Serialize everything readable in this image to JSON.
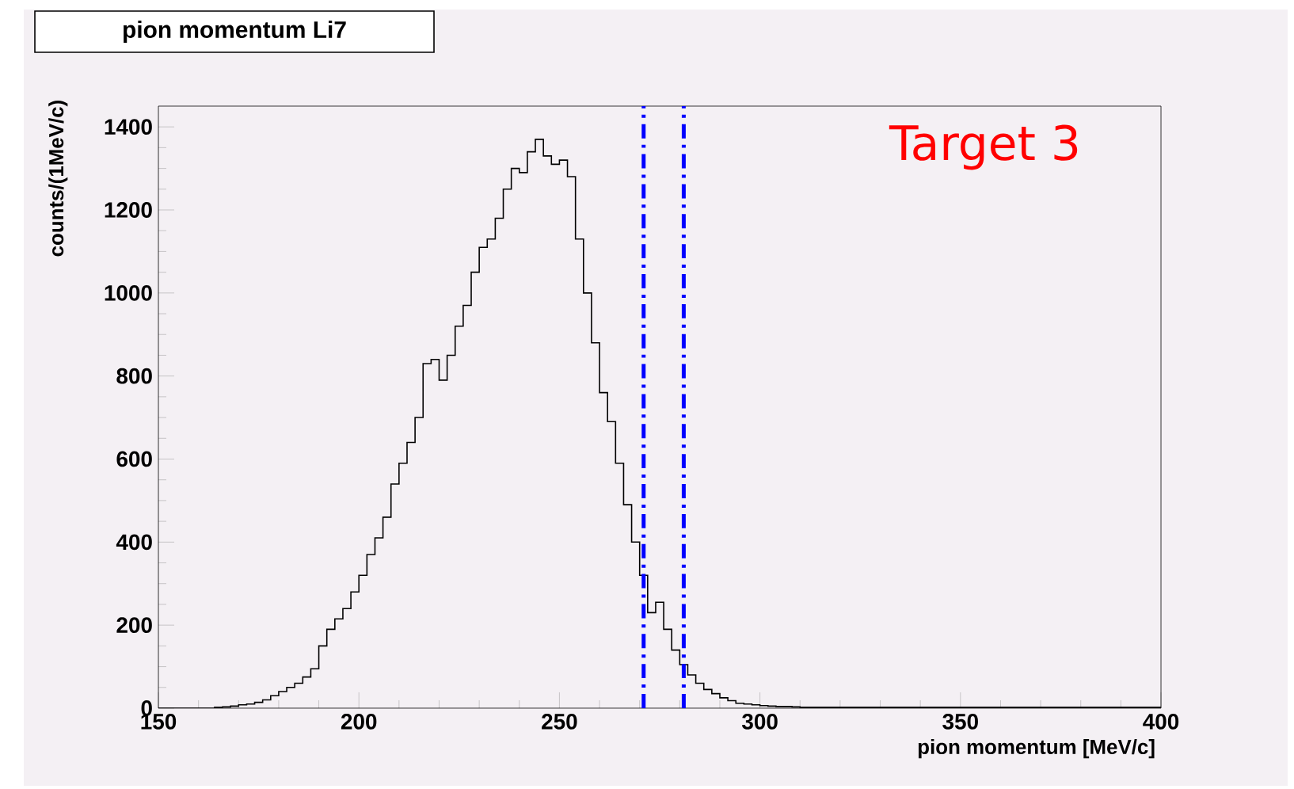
{
  "chart_data": {
    "type": "histogram",
    "title": "pion momentum Li7",
    "xlabel": "pion momentum [MeV/c]",
    "ylabel": "counts/(1MeV/c)",
    "annotations": [
      "Target 3"
    ],
    "bins": [
      150,
      160,
      162,
      164,
      166,
      168,
      170,
      172,
      174,
      176,
      178,
      180,
      182,
      184,
      186,
      188,
      190,
      192,
      194,
      196,
      198,
      200,
      202,
      204,
      206,
      208,
      210,
      212,
      214,
      216,
      218,
      220,
      222,
      224,
      226,
      228,
      230,
      232,
      234,
      236,
      238,
      240,
      242,
      244,
      246,
      248,
      250,
      252,
      254,
      256,
      258,
      260,
      262,
      264,
      266,
      268,
      270,
      272,
      274,
      276,
      278,
      280,
      282,
      284,
      286,
      288,
      290,
      292,
      294,
      296,
      298,
      300,
      302,
      304,
      306,
      308,
      310,
      400
    ],
    "values": [
      0,
      0,
      0,
      2,
      3,
      5,
      8,
      10,
      14,
      20,
      30,
      40,
      50,
      60,
      75,
      95,
      150,
      190,
      215,
      240,
      280,
      320,
      370,
      410,
      460,
      540,
      590,
      640,
      700,
      830,
      840,
      790,
      850,
      920,
      970,
      1050,
      1110,
      1130,
      1180,
      1250,
      1300,
      1290,
      1340,
      1370,
      1330,
      1310,
      1320,
      1280,
      1130,
      1000,
      880,
      760,
      690,
      590,
      490,
      400,
      320,
      230,
      255,
      190,
      140,
      105,
      80,
      60,
      45,
      35,
      25,
      18,
      12,
      10,
      8,
      6,
      5,
      4,
      4,
      3,
      2
    ],
    "color": "#000000",
    "xlim": [
      150,
      400
    ],
    "ylim": [
      0,
      1450
    ],
    "xticks": [
      150,
      200,
      250,
      300,
      350,
      400
    ],
    "yticks": [
      0,
      200,
      400,
      600,
      800,
      1000,
      1200,
      1400
    ],
    "ref_lines": [
      {
        "axis": "x",
        "value": 271,
        "color": "#0000ff",
        "line_style": "dashdot"
      },
      {
        "axis": "x",
        "value": 281,
        "color": "#0000ff",
        "line_style": "dashdot"
      }
    ],
    "grid": false
  }
}
